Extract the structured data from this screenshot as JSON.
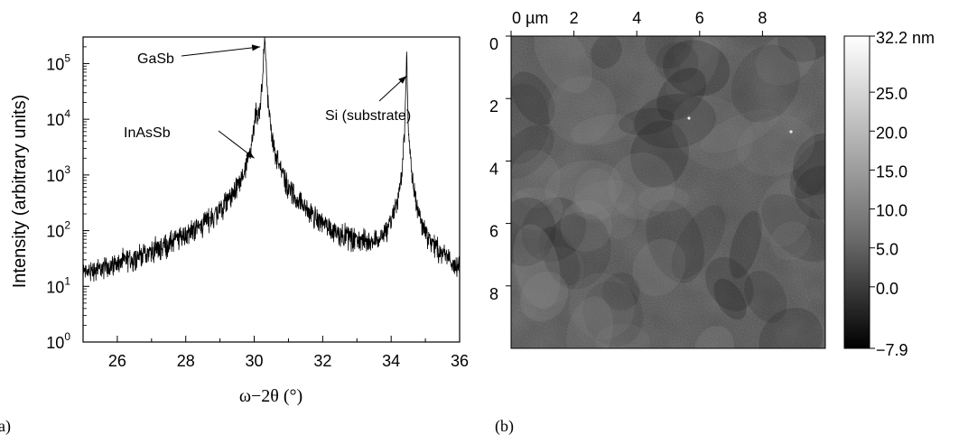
{
  "colors": {
    "ink": "#000000",
    "background": "#ffffff"
  },
  "chart_data": [
    {
      "type": "line",
      "panel_label": "(a)",
      "xlabel": "ω−2θ (°)",
      "ylabel": "Intensity (arbitrary units)",
      "xlim": [
        25,
        36
      ],
      "ylim": [
        1,
        300000
      ],
      "y_scale": "log",
      "x_ticks": [
        26,
        28,
        30,
        32,
        34,
        36
      ],
      "y_ticks": [
        {
          "value": 1,
          "base": "10",
          "exp": "0"
        },
        {
          "value": 10,
          "base": "10",
          "exp": "1"
        },
        {
          "value": 100,
          "base": "10",
          "exp": "2"
        },
        {
          "value": 1000,
          "base": "10",
          "exp": "3"
        },
        {
          "value": 10000,
          "base": "10",
          "exp": "4"
        },
        {
          "value": 100000,
          "base": "10",
          "exp": "5"
        }
      ],
      "peaks": [
        {
          "name": "InAsSb",
          "x": 30.05,
          "y": 7000
        },
        {
          "name": "GaSb",
          "x": 30.3,
          "y": 250000
        },
        {
          "name": "Si (substrate)",
          "x": 34.45,
          "y": 140000
        }
      ],
      "annotations": [
        {
          "text": "GaSb",
          "target_x": 30.28,
          "target_y": 200000
        },
        {
          "text": "InAsSb",
          "target_x": 30.0,
          "target_y": 2000
        },
        {
          "text": "Si (substrate)",
          "target_x": 34.45,
          "target_y": 60000
        }
      ],
      "grid": false
    },
    {
      "type": "heatmap",
      "panel_label": "(b)",
      "x_ticks": [
        "0 µm",
        "2",
        "4",
        "6",
        "8"
      ],
      "x_tick_values": [
        0,
        2,
        4,
        6,
        8
      ],
      "y_ticks": [
        "0",
        "2",
        "4",
        "6",
        "8"
      ],
      "y_tick_values": [
        0,
        2,
        4,
        6,
        8
      ],
      "xlim": [
        0,
        10
      ],
      "ylim": [
        0,
        10
      ],
      "colorbar": {
        "min": -7.9,
        "max": 32.2,
        "ticks": [
          {
            "value": 32.2,
            "label": "32.2 nm"
          },
          {
            "value": 25.0,
            "label": "25.0"
          },
          {
            "value": 20.0,
            "label": "20.0"
          },
          {
            "value": 15.0,
            "label": "15.0"
          },
          {
            "value": 10.0,
            "label": "10.0"
          },
          {
            "value": 5.0,
            "label": "5.0"
          },
          {
            "value": 0.0,
            "label": "0.0"
          },
          {
            "value": -7.9,
            "label": "−7.9"
          }
        ],
        "colormap": "grayscale"
      }
    }
  ]
}
